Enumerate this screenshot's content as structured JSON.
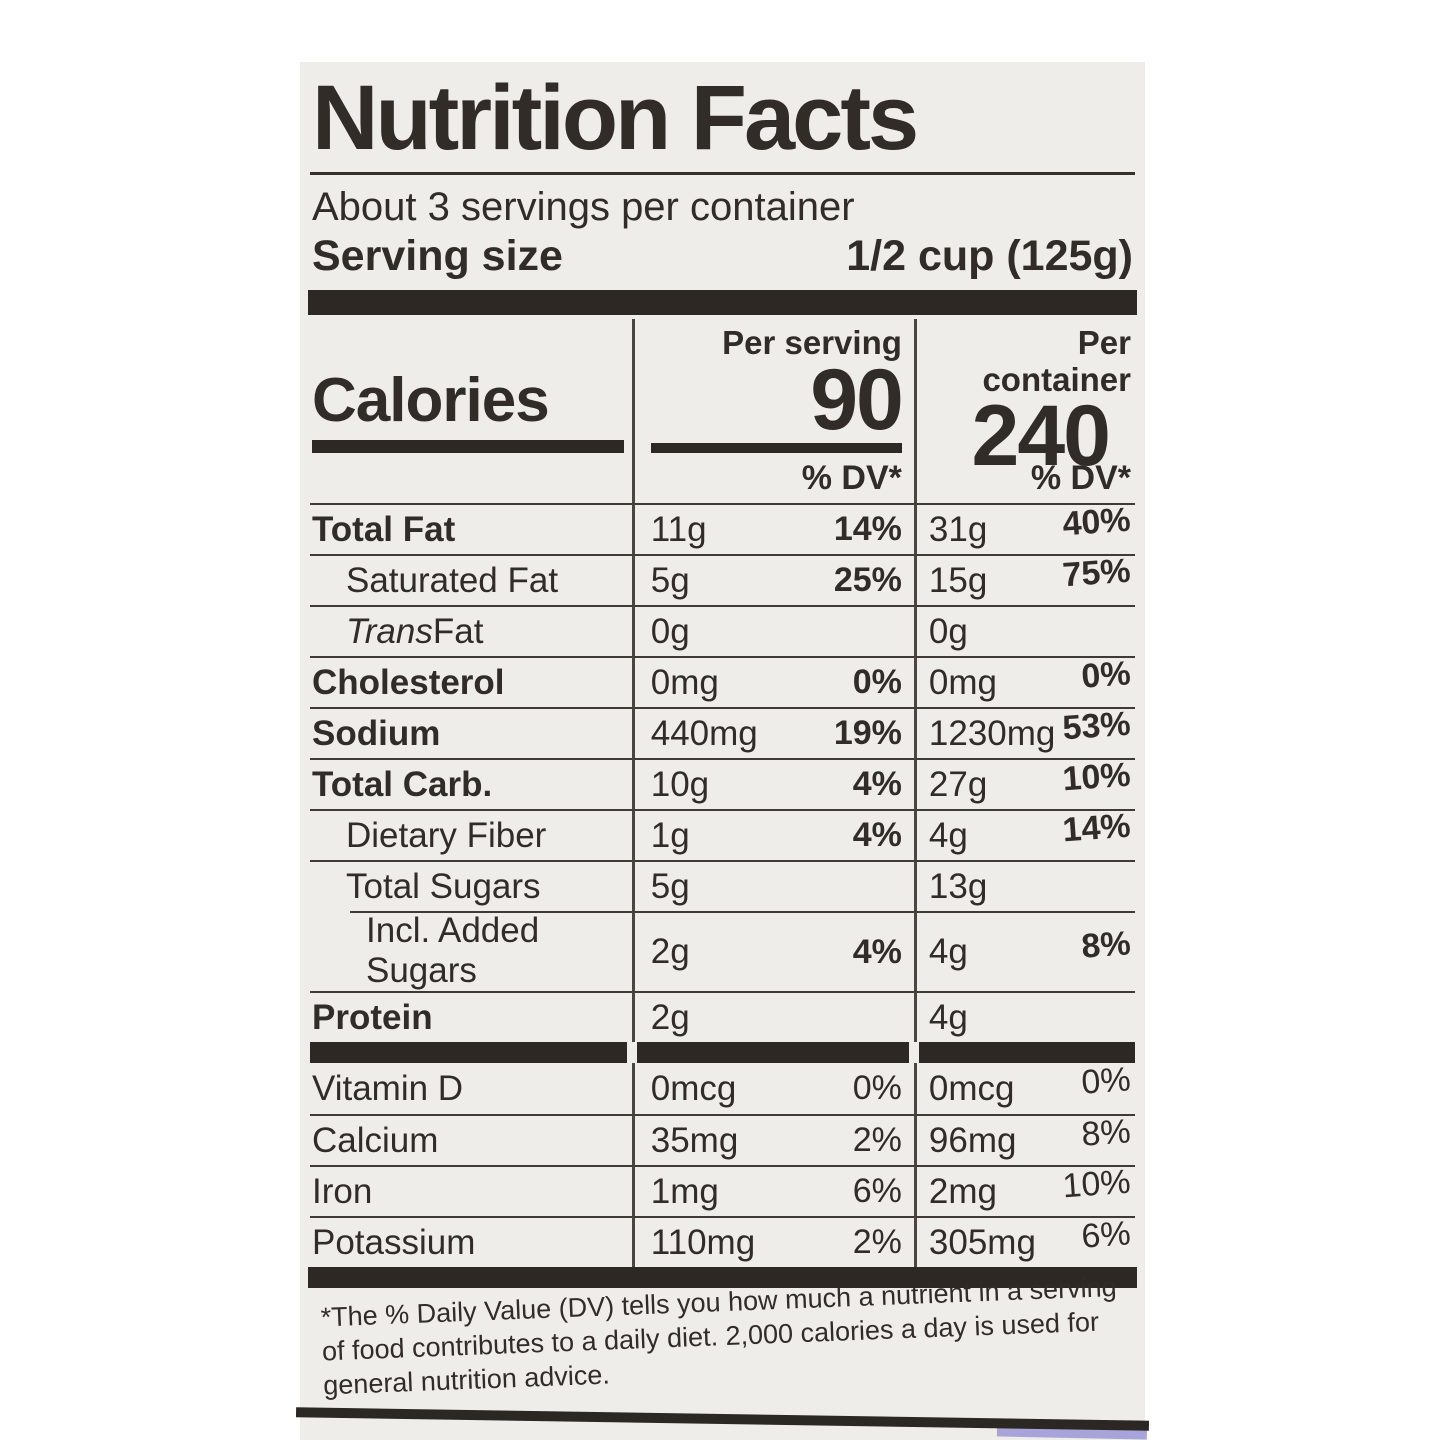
{
  "label": {
    "title": "Nutrition Facts",
    "servings_per_container": "About 3 servings per container",
    "serving_size_label": "Serving size",
    "serving_size_value": "1/2 cup (125g)",
    "calories": {
      "label": "Calories",
      "per_serving_header": "Per serving",
      "per_container_header": "Per container",
      "per_serving": "90",
      "per_container": "240"
    },
    "dv_header": "% DV*",
    "main_rows": [
      {
        "name": "Total Fat",
        "bold": true,
        "indent": 0,
        "ps": "11g",
        "ps_dv": "14%",
        "pc": "31g",
        "pc_dv": "40%"
      },
      {
        "name": "Saturated Fat",
        "bold": false,
        "indent": 1,
        "ps": "5g",
        "ps_dv": "25%",
        "pc": "15g",
        "pc_dv": "75%"
      },
      {
        "name": "Trans Fat",
        "bold": false,
        "indent": 1,
        "italic_first": true,
        "ps": "0g",
        "ps_dv": "",
        "pc": "0g",
        "pc_dv": ""
      },
      {
        "name": "Cholesterol",
        "bold": true,
        "indent": 0,
        "ps": "0mg",
        "ps_dv": "0%",
        "pc": "0mg",
        "pc_dv": "0%"
      },
      {
        "name": "Sodium",
        "bold": true,
        "indent": 0,
        "ps": "440mg",
        "ps_dv": "19%",
        "pc": "1230mg",
        "pc_dv": "53%"
      },
      {
        "name": "Total Carb.",
        "bold": true,
        "indent": 0,
        "ps": "10g",
        "ps_dv": "4%",
        "pc": "27g",
        "pc_dv": "10%"
      },
      {
        "name": "Dietary Fiber",
        "bold": false,
        "indent": 1,
        "ps": "1g",
        "ps_dv": "4%",
        "pc": "4g",
        "pc_dv": "14%"
      },
      {
        "name": "Total Sugars",
        "bold": false,
        "indent": 1,
        "ps": "5g",
        "ps_dv": "",
        "pc": "13g",
        "pc_dv": ""
      },
      {
        "name": "Incl. Added Sugars",
        "bold": false,
        "indent": 2,
        "line_indent": true,
        "ps": "2g",
        "ps_dv": "4%",
        "pc": "4g",
        "pc_dv": "8%"
      },
      {
        "name": "Protein",
        "bold": true,
        "indent": 0,
        "ps": "2g",
        "ps_dv": "",
        "pc": "4g",
        "pc_dv": ""
      }
    ],
    "vitamin_rows": [
      {
        "name": "Vitamin D",
        "ps": "0mcg",
        "ps_dv": "0%",
        "pc": "0mcg",
        "pc_dv": "0%"
      },
      {
        "name": "Calcium",
        "ps": "35mg",
        "ps_dv": "2%",
        "pc": "96mg",
        "pc_dv": "8%"
      },
      {
        "name": "Iron",
        "ps": "1mg",
        "ps_dv": "6%",
        "pc": "2mg",
        "pc_dv": "10%"
      },
      {
        "name": "Potassium",
        "ps": "110mg",
        "ps_dv": "2%",
        "pc": "305mg",
        "pc_dv": "6%"
      }
    ],
    "footnote": "*The % Daily Value (DV) tells you how much a nutrient in a serving of food contributes to a daily diet. 2,000 calories a day is used for general nutrition advice.",
    "colors": {
      "label_bg": "#efedea",
      "ink": "#2d2824",
      "page_bg": "#ffffff",
      "corner_accent": "#a8a3d8"
    }
  }
}
